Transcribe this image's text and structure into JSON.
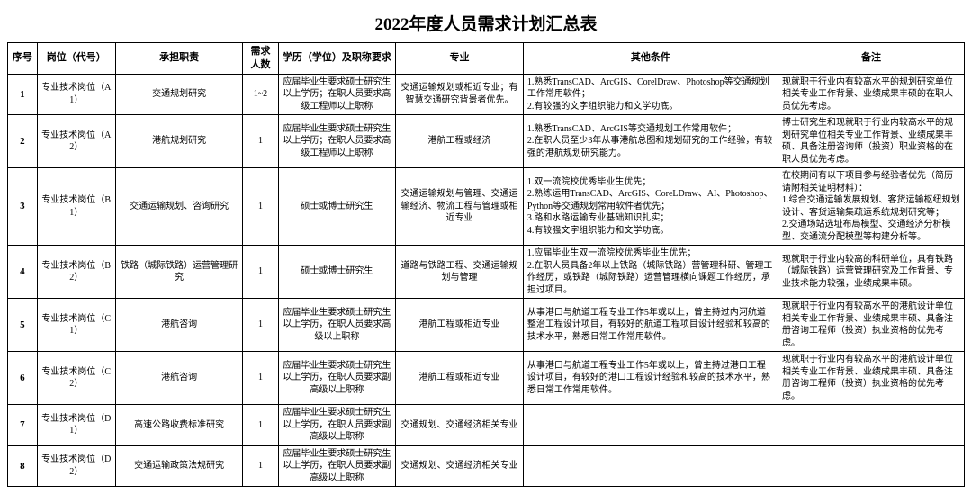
{
  "title": "2022年度人员需求计划汇总表",
  "columns": [
    "序号",
    "岗位（代号）",
    "承担职责",
    "需求人数",
    "学历（学位）及职称要求",
    "专业",
    "其他条件",
    "备注"
  ],
  "rows": [
    {
      "seq": "1",
      "post": "专业技术岗位（A1）",
      "duty": "交通规划研究",
      "count": "1~2",
      "edu": "应届毕业生要求硕士研究生以上学历；在职人员要求高级工程师以上职称",
      "major": "交通运输规划或相近专业；有智慧交通研究背景者优先。",
      "other": "1.熟悉TransCAD、ArcGIS、CorelDraw、Photoshop等交通规划工作常用软件；\n2.有较强的文字组织能力和文学功底。",
      "remark": "现就职于行业内有较高水平的规划研究单位相关专业工作背景、业绩成果丰硕的在职人员优先考虑。"
    },
    {
      "seq": "2",
      "post": "专业技术岗位（A2）",
      "duty": "港航规划研究",
      "count": "1",
      "edu": "应届毕业生要求硕士研究生以上学历；在职人员要求高级工程师以上职称",
      "major": "港航工程或经济",
      "other": "1.熟悉TransCAD、ArcGIS等交通规划工作常用软件；\n2.在职人员至少3年从事港航总图和规划研究的工作经验，有较强的港航规划研究能力。",
      "remark": "博士研究生和现就职于行业内较高水平的规划研究单位相关专业工作背景、业绩成果丰硕、具备注册咨询师（投资）职业资格的在职人员优先考虑。"
    },
    {
      "seq": "3",
      "post": "专业技术岗位（B1）",
      "duty": "交通运输规划、咨询研究",
      "count": "1",
      "edu": "硕士或博士研究生",
      "major": "交通运输规划与管理、交通运输经济、物流工程与管理或相近专业",
      "other": "1.双一流院校优秀毕业生优先；\n2.熟练运用TransCAD、ArcGIS、CoreLDraw、AI、Photoshop、Python等交通规划常用软件者优先；\n3.路和水路运输专业基础知识扎实；\n4.有较强文字组织能力和文学功底。",
      "remark": "在校期间有以下项目参与经验者优先（简历请附相关证明材料）：\n1.综合交通运输发展规划、客货运输枢纽规划设计、客货运输集疏运系统规划研究等；\n2.交通场站选址布局模型、交通经济分析模型、交通流分配模型等构建分析等。"
    },
    {
      "seq": "4",
      "post": "专业技术岗位（B2）",
      "duty": "铁路（城际铁路）运营管理研究",
      "count": "1",
      "edu": "硕士或博士研究生",
      "major": "道路与铁路工程、交通运输规划与管理",
      "other": "1.应届毕业生双一流院校优秀毕业生优先；\n2.在职人员具备2年以上铁路（城际铁路）营管理科研、管理工作经历，或铁路（城际铁路）运营管理横向课题工作经历，承担过项目。",
      "remark": "现就职于行业内较高的科研单位，具有铁路（城际铁路）运营管理研究及工作背景、专业技术能力较强，业绩成果丰硕。"
    },
    {
      "seq": "5",
      "post": "专业技术岗位（C1）",
      "duty": "港航咨询",
      "count": "1",
      "edu": "应届毕业生要求硕士研究生以上学历，在职人员要求高级以上职称",
      "major": "港航工程或相近专业",
      "other": "从事港口与航道工程专业工作5年或以上，曾主持过内河航道整治工程设计项目，有较好的航道工程项目设计经验和较高的技术水平，熟悉日常工作常用软件。",
      "remark": "现就职于行业内有较高水平的港航设计单位相关专业工作背景、业绩成果丰硕、具备注册咨询工程师（投资）执业资格的优先考虑。"
    },
    {
      "seq": "6",
      "post": "专业技术岗位（C2）",
      "duty": "港航咨询",
      "count": "1",
      "edu": "应届毕业生要求硕士研究生以上学历，在职人员要求副高级以上职称",
      "major": "港航工程或相近专业",
      "other": "从事港口与航道工程专业工作5年或以上，曾主持过港口工程设计项目，有较好的港口工程设计经验和较高的技术水平，熟悉日常工作常用软件。",
      "remark": "现就职于行业内有较高水平的港航设计单位相关专业工作背景、业绩成果丰硕、具备注册咨询工程师（投资）执业资格的优先考虑。"
    },
    {
      "seq": "7",
      "post": "专业技术岗位（D1）",
      "duty": "高速公路收费标准研究",
      "count": "1",
      "edu": "应届毕业生要求硕士研究生以上学历，在职人员要求副高级以上职称",
      "major": "交通规划、交通经济相关专业",
      "other": "",
      "remark": ""
    },
    {
      "seq": "8",
      "post": "专业技术岗位（D2）",
      "duty": "交通运输政策法规研究",
      "count": "1",
      "edu": "应届毕业生要求硕士研究生以上学历，在职人员要求副高级以上职称",
      "major": "交通规划、交通经济相关专业",
      "other": "",
      "remark": ""
    }
  ]
}
